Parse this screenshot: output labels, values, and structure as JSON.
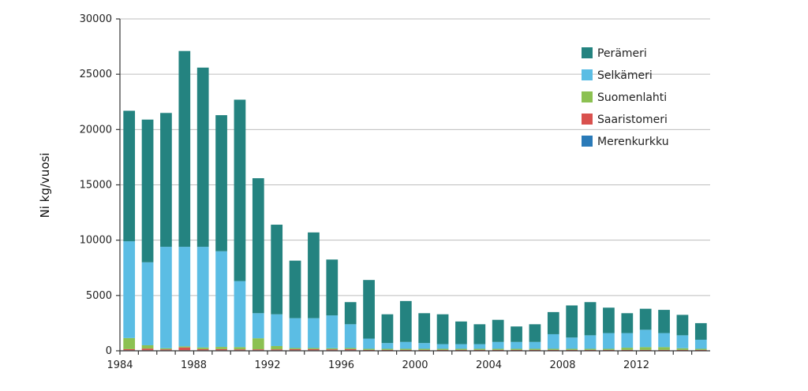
{
  "chart_data": {
    "type": "bar",
    "stacked": true,
    "ylabel": "Ni kg/vuosi",
    "xlabel": "",
    "ylim": [
      0,
      30000
    ],
    "yticks": [
      0,
      5000,
      10000,
      15000,
      20000,
      25000,
      30000
    ],
    "grid": true,
    "legend_position": "top-right",
    "categories": [
      1984,
      1985,
      1986,
      1987,
      1988,
      1989,
      1990,
      1991,
      1992,
      1993,
      1994,
      1995,
      1996,
      1997,
      1998,
      1999,
      2000,
      2001,
      2002,
      2003,
      2004,
      2005,
      2006,
      2007,
      2008,
      2009,
      2010,
      2011,
      2012,
      2013,
      2014,
      2015
    ],
    "xtick_labels": [
      "1984",
      "1988",
      "1992",
      "1996",
      "2000",
      "2004",
      "2008",
      "2012"
    ],
    "xtick_years": [
      1984,
      1988,
      1992,
      1996,
      2000,
      2004,
      2008,
      2012
    ],
    "series": [
      {
        "name": "Merenkurkku",
        "color": "#2a7ab8",
        "values": [
          50,
          50,
          50,
          50,
          50,
          50,
          50,
          50,
          50,
          50,
          50,
          50,
          50,
          30,
          30,
          30,
          30,
          30,
          30,
          30,
          30,
          30,
          30,
          30,
          30,
          30,
          30,
          30,
          30,
          30,
          30,
          30
        ]
      },
      {
        "name": "Saaristomeri",
        "color": "#d9514e",
        "values": [
          100,
          150,
          80,
          250,
          100,
          100,
          80,
          80,
          80,
          100,
          100,
          80,
          100,
          50,
          50,
          50,
          50,
          50,
          50,
          50,
          50,
          50,
          50,
          50,
          50,
          50,
          50,
          50,
          50,
          50,
          50,
          50
        ]
      },
      {
        "name": "Suomenlahti",
        "color": "#8cc152",
        "values": [
          1000,
          300,
          100,
          100,
          150,
          200,
          200,
          1000,
          300,
          100,
          100,
          100,
          100,
          100,
          100,
          100,
          100,
          100,
          100,
          100,
          100,
          100,
          100,
          100,
          100,
          100,
          100,
          200,
          250,
          250,
          150,
          100
        ]
      },
      {
        "name": "Selkämeri",
        "color": "#5bbde4",
        "values": [
          8750,
          7500,
          9170,
          9000,
          9100,
          8650,
          5970,
          2270,
          2870,
          2700,
          2700,
          2970,
          2150,
          920,
          520,
          620,
          520,
          420,
          420,
          420,
          620,
          620,
          620,
          1320,
          1020,
          1220,
          1420,
          1320,
          1570,
          1270,
          1170,
          820
        ]
      },
      {
        "name": "Perämeri",
        "color": "#248380",
        "values": [
          11800,
          12900,
          12100,
          17700,
          16200,
          12300,
          16400,
          12200,
          8100,
          5200,
          7750,
          5050,
          2000,
          5300,
          2600,
          3700,
          2700,
          2700,
          2050,
          1800,
          2000,
          1400,
          1600,
          2000,
          2900,
          3000,
          2300,
          1800,
          1900,
          2100,
          1850,
          1500
        ]
      }
    ],
    "legend_order": [
      "Perämeri",
      "Selkämeri",
      "Suomenlahti",
      "Saaristomeri",
      "Merenkurkku"
    ]
  }
}
